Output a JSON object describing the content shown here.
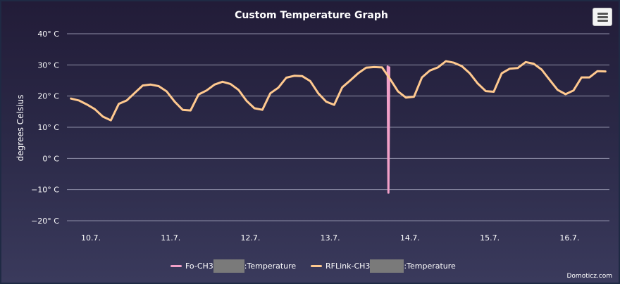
{
  "colors": {
    "series_fo": "#f2a0c8",
    "series_rflink": "#ffc98f",
    "grid": "#8f8fa8"
  },
  "menu": {
    "icon": "hamburger-menu-icon"
  },
  "credit": "Domoticz.com",
  "chart_data": {
    "type": "line",
    "title": "Custom Temperature Graph",
    "ylabel": "degrees Celsius",
    "xlabel": "",
    "ylim": [
      -20,
      40
    ],
    "xlim": [
      10.4,
      17.2
    ],
    "yticks": [
      -20,
      -10,
      0,
      10,
      20,
      30,
      40
    ],
    "ytick_labels": [
      "−20° C",
      "−10° C",
      "0° C",
      "10° C",
      "20° C",
      "30° C",
      "40° C"
    ],
    "xticks": [
      10.7,
      11.7,
      12.7,
      13.7,
      14.7,
      15.7,
      16.7
    ],
    "xtick_labels": [
      "10.7.",
      "11.7.",
      "12.7.",
      "13.7.",
      "14.7.",
      "15.7.",
      "16.7."
    ],
    "grid": true,
    "legend_position": "bottom-center",
    "series": [
      {
        "name_prefix": "Fo-CH3",
        "name_suffix": ":Temperature",
        "x": [
          14.42,
          14.43,
          14.44
        ],
        "y": [
          29.5,
          -11,
          29.2
        ]
      },
      {
        "name_prefix": "RFLink-CH3",
        "name_suffix": ":Temperature",
        "x": [
          10.45,
          10.55,
          10.65,
          10.75,
          10.85,
          10.95,
          11.05,
          11.15,
          11.25,
          11.35,
          11.45,
          11.55,
          11.65,
          11.75,
          11.85,
          11.95,
          12.05,
          12.15,
          12.25,
          12.35,
          12.45,
          12.55,
          12.65,
          12.75,
          12.85,
          12.95,
          13.05,
          13.15,
          13.25,
          13.35,
          13.45,
          13.55,
          13.65,
          13.75,
          13.85,
          13.95,
          14.05,
          14.15,
          14.25,
          14.35,
          14.45,
          14.55,
          14.65,
          14.75,
          14.85,
          14.95,
          15.05,
          15.15,
          15.25,
          15.35,
          15.45,
          15.55,
          15.65,
          15.75,
          15.85,
          15.95,
          16.05,
          16.15,
          16.25,
          16.35,
          16.45,
          16.55,
          16.65,
          16.75,
          16.85,
          16.95,
          17.05,
          17.15
        ],
        "y": [
          19.2,
          18.6,
          17.3,
          15.8,
          13.4,
          12.2,
          17.5,
          18.6,
          21.0,
          23.4,
          23.7,
          23.2,
          21.5,
          18.2,
          15.6,
          15.4,
          20.5,
          21.8,
          23.7,
          24.6,
          23.9,
          22.0,
          18.5,
          16.1,
          15.6,
          20.9,
          22.7,
          25.9,
          26.5,
          26.4,
          24.8,
          20.9,
          18.2,
          17.2,
          22.8,
          25.0,
          27.3,
          29.1,
          29.3,
          29.2,
          25.5,
          21.5,
          19.5,
          19.8,
          26.0,
          28.2,
          29.2,
          31.2,
          30.7,
          29.6,
          27.3,
          24.0,
          21.6,
          21.4,
          27.3,
          28.8,
          29.0,
          30.9,
          30.4,
          28.5,
          25.2,
          22.0,
          20.6,
          21.8,
          26.0,
          26.0,
          28.0,
          27.9
        ]
      }
    ]
  }
}
